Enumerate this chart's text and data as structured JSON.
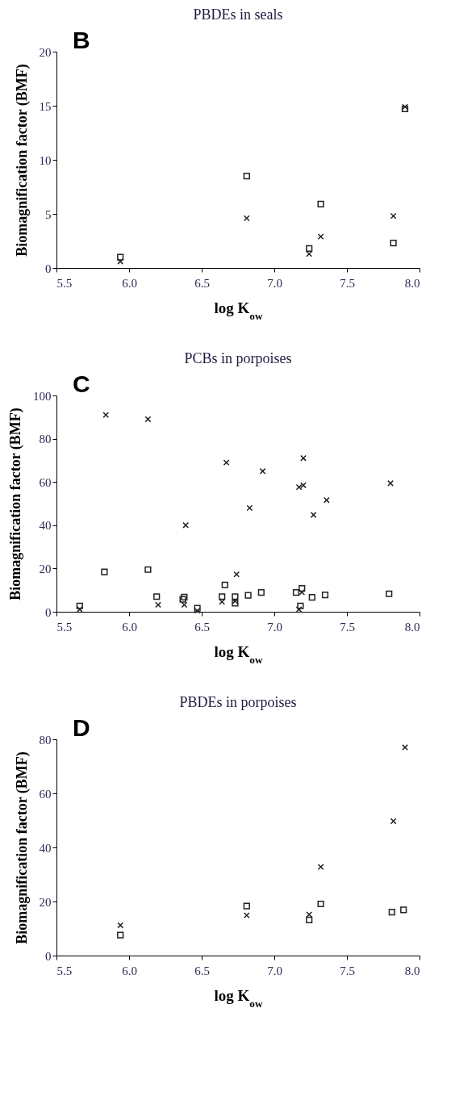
{
  "chart_data": [
    {
      "type": "scatter",
      "title": "PBDEs in seals",
      "annotations": [
        "B"
      ],
      "xlabel": "log K$_{ow}$",
      "ylabel": "Biomagnification factor (BMF)",
      "xlim": [
        5.5,
        8.0
      ],
      "xticks": [
        {
          "value": 5.5,
          "label": "5.5"
        },
        {
          "value": 6,
          "label": "6.0"
        },
        {
          "value": 6.5,
          "label": "6.5"
        },
        {
          "value": 7,
          "label": "7.0"
        },
        {
          "value": 7.5,
          "label": "7.5"
        },
        {
          "value": 8,
          "label": "8.0"
        }
      ],
      "ylim": [
        0,
        20
      ],
      "yticks": [
        0,
        5,
        10,
        15,
        20
      ],
      "grid": false,
      "legend": false,
      "series": [
        {
          "marker": "square",
          "color": "#222222",
          "x": [
            5.94,
            6.81,
            7.24,
            7.32,
            7.82,
            7.9
          ],
          "values": [
            1.0,
            8.5,
            1.8,
            5.9,
            2.3,
            14.7
          ]
        },
        {
          "marker": "cross",
          "color": "#222222",
          "x": [
            5.94,
            6.81,
            7.24,
            7.32,
            7.82,
            7.9
          ],
          "values": [
            0.6,
            4.6,
            1.3,
            2.9,
            4.8,
            14.9
          ]
        }
      ]
    },
    {
      "type": "scatter",
      "title": "PCBs in porpoises",
      "annotations": [
        "C"
      ],
      "xlabel": "log K$_{ow}$",
      "ylabel": "Biomagnification factor (BMF)",
      "xlim": [
        5.5,
        8.0
      ],
      "xticks": [
        {
          "value": 5.5,
          "label": "5.5"
        },
        {
          "value": 6,
          "label": "6.0"
        },
        {
          "value": 6.5,
          "label": "6.5"
        },
        {
          "value": 7,
          "label": "7.0"
        },
        {
          "value": 7.5,
          "label": "7.5"
        },
        {
          "value": 8,
          "label": "8.0"
        }
      ],
      "ylim": [
        0,
        100
      ],
      "yticks": [
        0,
        20,
        40,
        60,
        80,
        100
      ],
      "grid": false,
      "legend": false,
      "series": [
        {
          "marker": "square",
          "color": "#222222",
          "x": [
            5.66,
            5.83,
            6.13,
            6.19,
            6.38,
            6.37,
            6.47,
            6.64,
            6.66,
            6.73,
            6.73,
            6.82,
            6.91,
            7.15,
            7.19,
            7.26,
            7.35,
            7.79,
            7.18
          ],
          "values": [
            2.7,
            18.4,
            19.5,
            7.0,
            6.8,
            5.7,
            1.6,
            7.0,
            12.4,
            7.0,
            4.0,
            7.6,
            8.9,
            8.9,
            10.8,
            6.7,
            7.8,
            8.3,
            2.7
          ]
        },
        {
          "marker": "cross",
          "color": "#222222",
          "x": [
            5.84,
            6.13,
            6.67,
            6.92,
            7.2,
            7.17,
            7.2,
            7.8,
            7.36,
            7.27,
            6.83,
            6.39,
            6.74,
            5.66,
            6.2,
            6.38,
            6.47,
            6.64,
            6.73,
            7.17,
            7.19
          ],
          "values": [
            91,
            89,
            69,
            65,
            71,
            57.6,
            58.5,
            59.4,
            51.6,
            44.8,
            48,
            40,
            17.3,
            1.1,
            3.2,
            3.2,
            0.5,
            4.6,
            4.9,
            1.1,
            9
          ]
        }
      ]
    },
    {
      "type": "scatter",
      "title": "PBDEs in porpoises",
      "annotations": [
        "D"
      ],
      "xlabel": "log K$_{ow}$",
      "ylabel": "Biomagnification factor (BMF)",
      "xlim": [
        5.5,
        8.0
      ],
      "xticks": [
        {
          "value": 5.5,
          "label": "5.5"
        },
        {
          "value": 6,
          "label": "6.0"
        },
        {
          "value": 6.5,
          "label": "6.5"
        },
        {
          "value": 7,
          "label": "7.0"
        },
        {
          "value": 7.5,
          "label": "7.5"
        },
        {
          "value": 8,
          "label": "8.0"
        }
      ],
      "ylim": [
        0,
        80
      ],
      "yticks": [
        0,
        20,
        40,
        60,
        80
      ],
      "grid": false,
      "legend": false,
      "series": [
        {
          "marker": "square",
          "color": "#222222",
          "x": [
            5.94,
            6.81,
            7.24,
            7.32,
            7.81,
            7.89
          ],
          "values": [
            7.6,
            18.3,
            13.2,
            19.1,
            16.1,
            16.9
          ]
        },
        {
          "marker": "cross",
          "color": "#222222",
          "x": [
            5.94,
            6.81,
            7.24,
            7.32,
            7.82,
            7.9
          ],
          "values": [
            11.2,
            14.9,
            15.2,
            32.8,
            49.7,
            77
          ]
        }
      ]
    }
  ]
}
